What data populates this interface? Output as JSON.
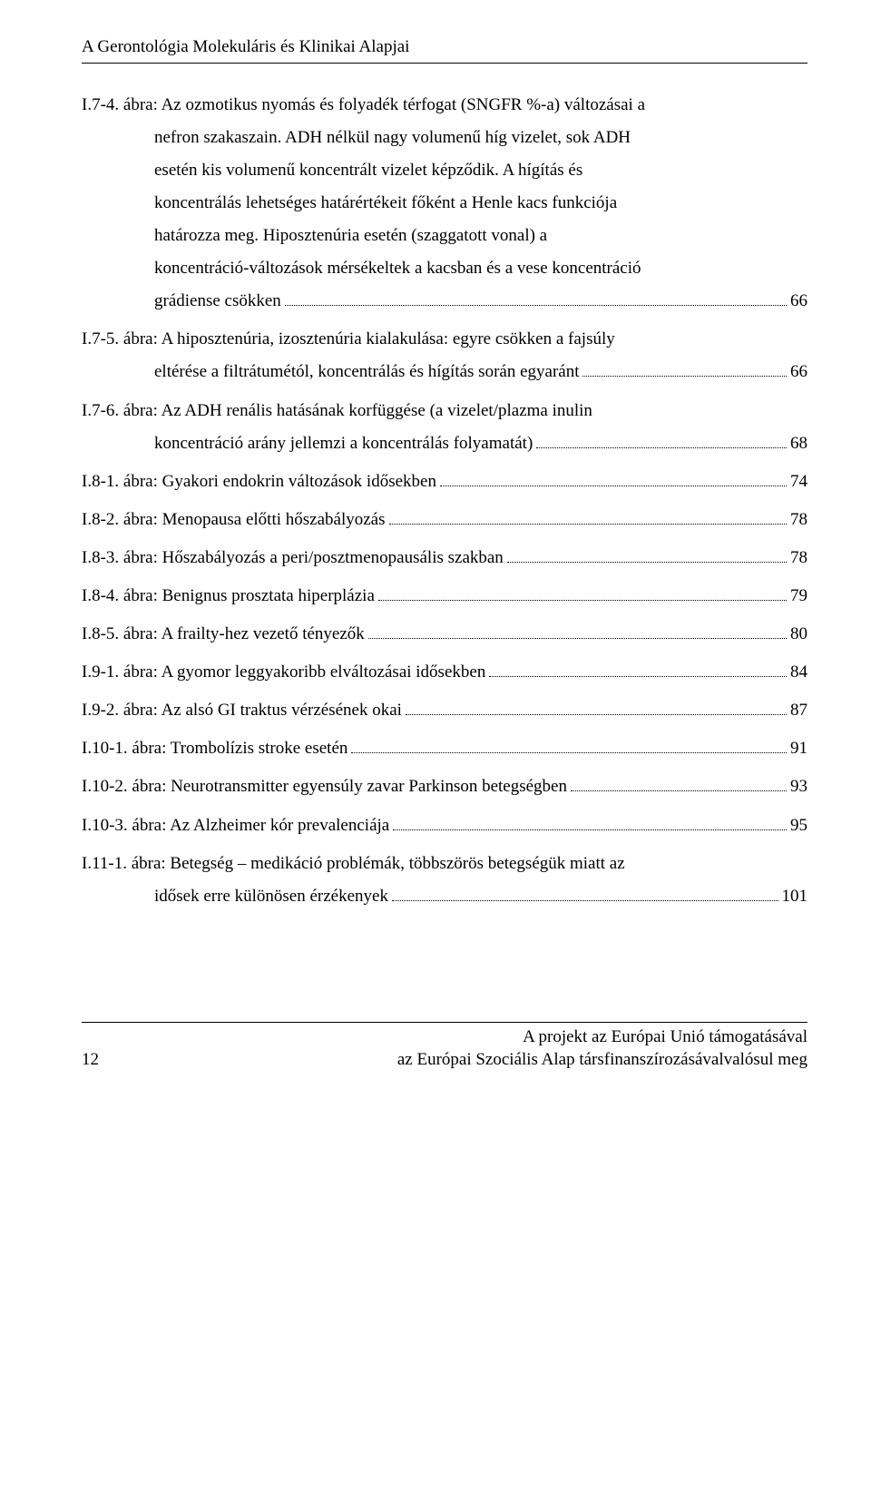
{
  "header": {
    "title": "A Gerontológia Molekuláris és Klinikai Alapjai"
  },
  "entries": [
    {
      "lines": [
        "I.7-4. ábra: Az ozmotikus nyomás és folyadék térfogat (SNGFR %-a) változásai a",
        "nefron szakaszain. ADH nélkül nagy volumenű híg vizelet, sok ADH",
        "esetén kis volumenű koncentrált vizelet képződik. A hígítás és",
        "koncentrálás lehetséges határértékeit főként a Henle kacs funkciója",
        "határozza meg. Hiposztenúria esetén (szaggatott vonal) a",
        "koncentráció-változások mérsékeltek a kacsban és a vese koncentráció",
        "grádiense csökken"
      ],
      "page": "66"
    },
    {
      "lines": [
        "I.7-5. ábra: A hiposztenúria, izosztenúria kialakulása: egyre csökken a fajsúly",
        "eltérése a filtrátumétól, koncentrálás és hígítás során egyaránt"
      ],
      "page": "66"
    },
    {
      "lines": [
        "I.7-6. ábra: Az ADH renális hatásának korfüggése (a vizelet/plazma inulin",
        "koncentráció arány jellemzi a koncentrálás folyamatát)"
      ],
      "page": "68"
    },
    {
      "lines": [
        "I.8-1. ábra: Gyakori endokrin változások idősekben"
      ],
      "page": "74"
    },
    {
      "lines": [
        "I.8-2. ábra: Menopausa előtti hőszabályozás"
      ],
      "page": "78"
    },
    {
      "lines": [
        "I.8-3. ábra: Hőszabályozás a peri/posztmenopausális szakban"
      ],
      "page": "78"
    },
    {
      "lines": [
        "I.8-4. ábra: Benignus prosztata hiperplázia"
      ],
      "page": "79"
    },
    {
      "lines": [
        "I.8-5. ábra: A frailty-hez vezető tényezők"
      ],
      "page": "80"
    },
    {
      "lines": [
        "I.9-1. ábra: A gyomor leggyakoribb elváltozásai idősekben"
      ],
      "page": "84"
    },
    {
      "lines": [
        "I.9-2. ábra: Az alsó GI traktus vérzésének okai"
      ],
      "page": "87"
    },
    {
      "lines": [
        "I.10-1. ábra: Trombolízis stroke esetén"
      ],
      "page": "91"
    },
    {
      "lines": [
        "I.10-2. ábra: Neurotransmitter egyensúly zavar Parkinson betegségben"
      ],
      "page": "93"
    },
    {
      "lines": [
        "I.10-3. ábra: Az Alzheimer kór prevalenciája"
      ],
      "page": "95"
    },
    {
      "lines": [
        "I.11-1. ábra: Betegség – medikáció problémák, többszörös betegségük miatt az",
        "idősek erre különösen érzékenyek"
      ],
      "page": "101"
    }
  ],
  "footer": {
    "page_number": "12",
    "line1": "A projekt az Európai Unió támogatásával",
    "line2": "az Európai Szociális Alap társfinanszírozásávalvalósul meg"
  }
}
